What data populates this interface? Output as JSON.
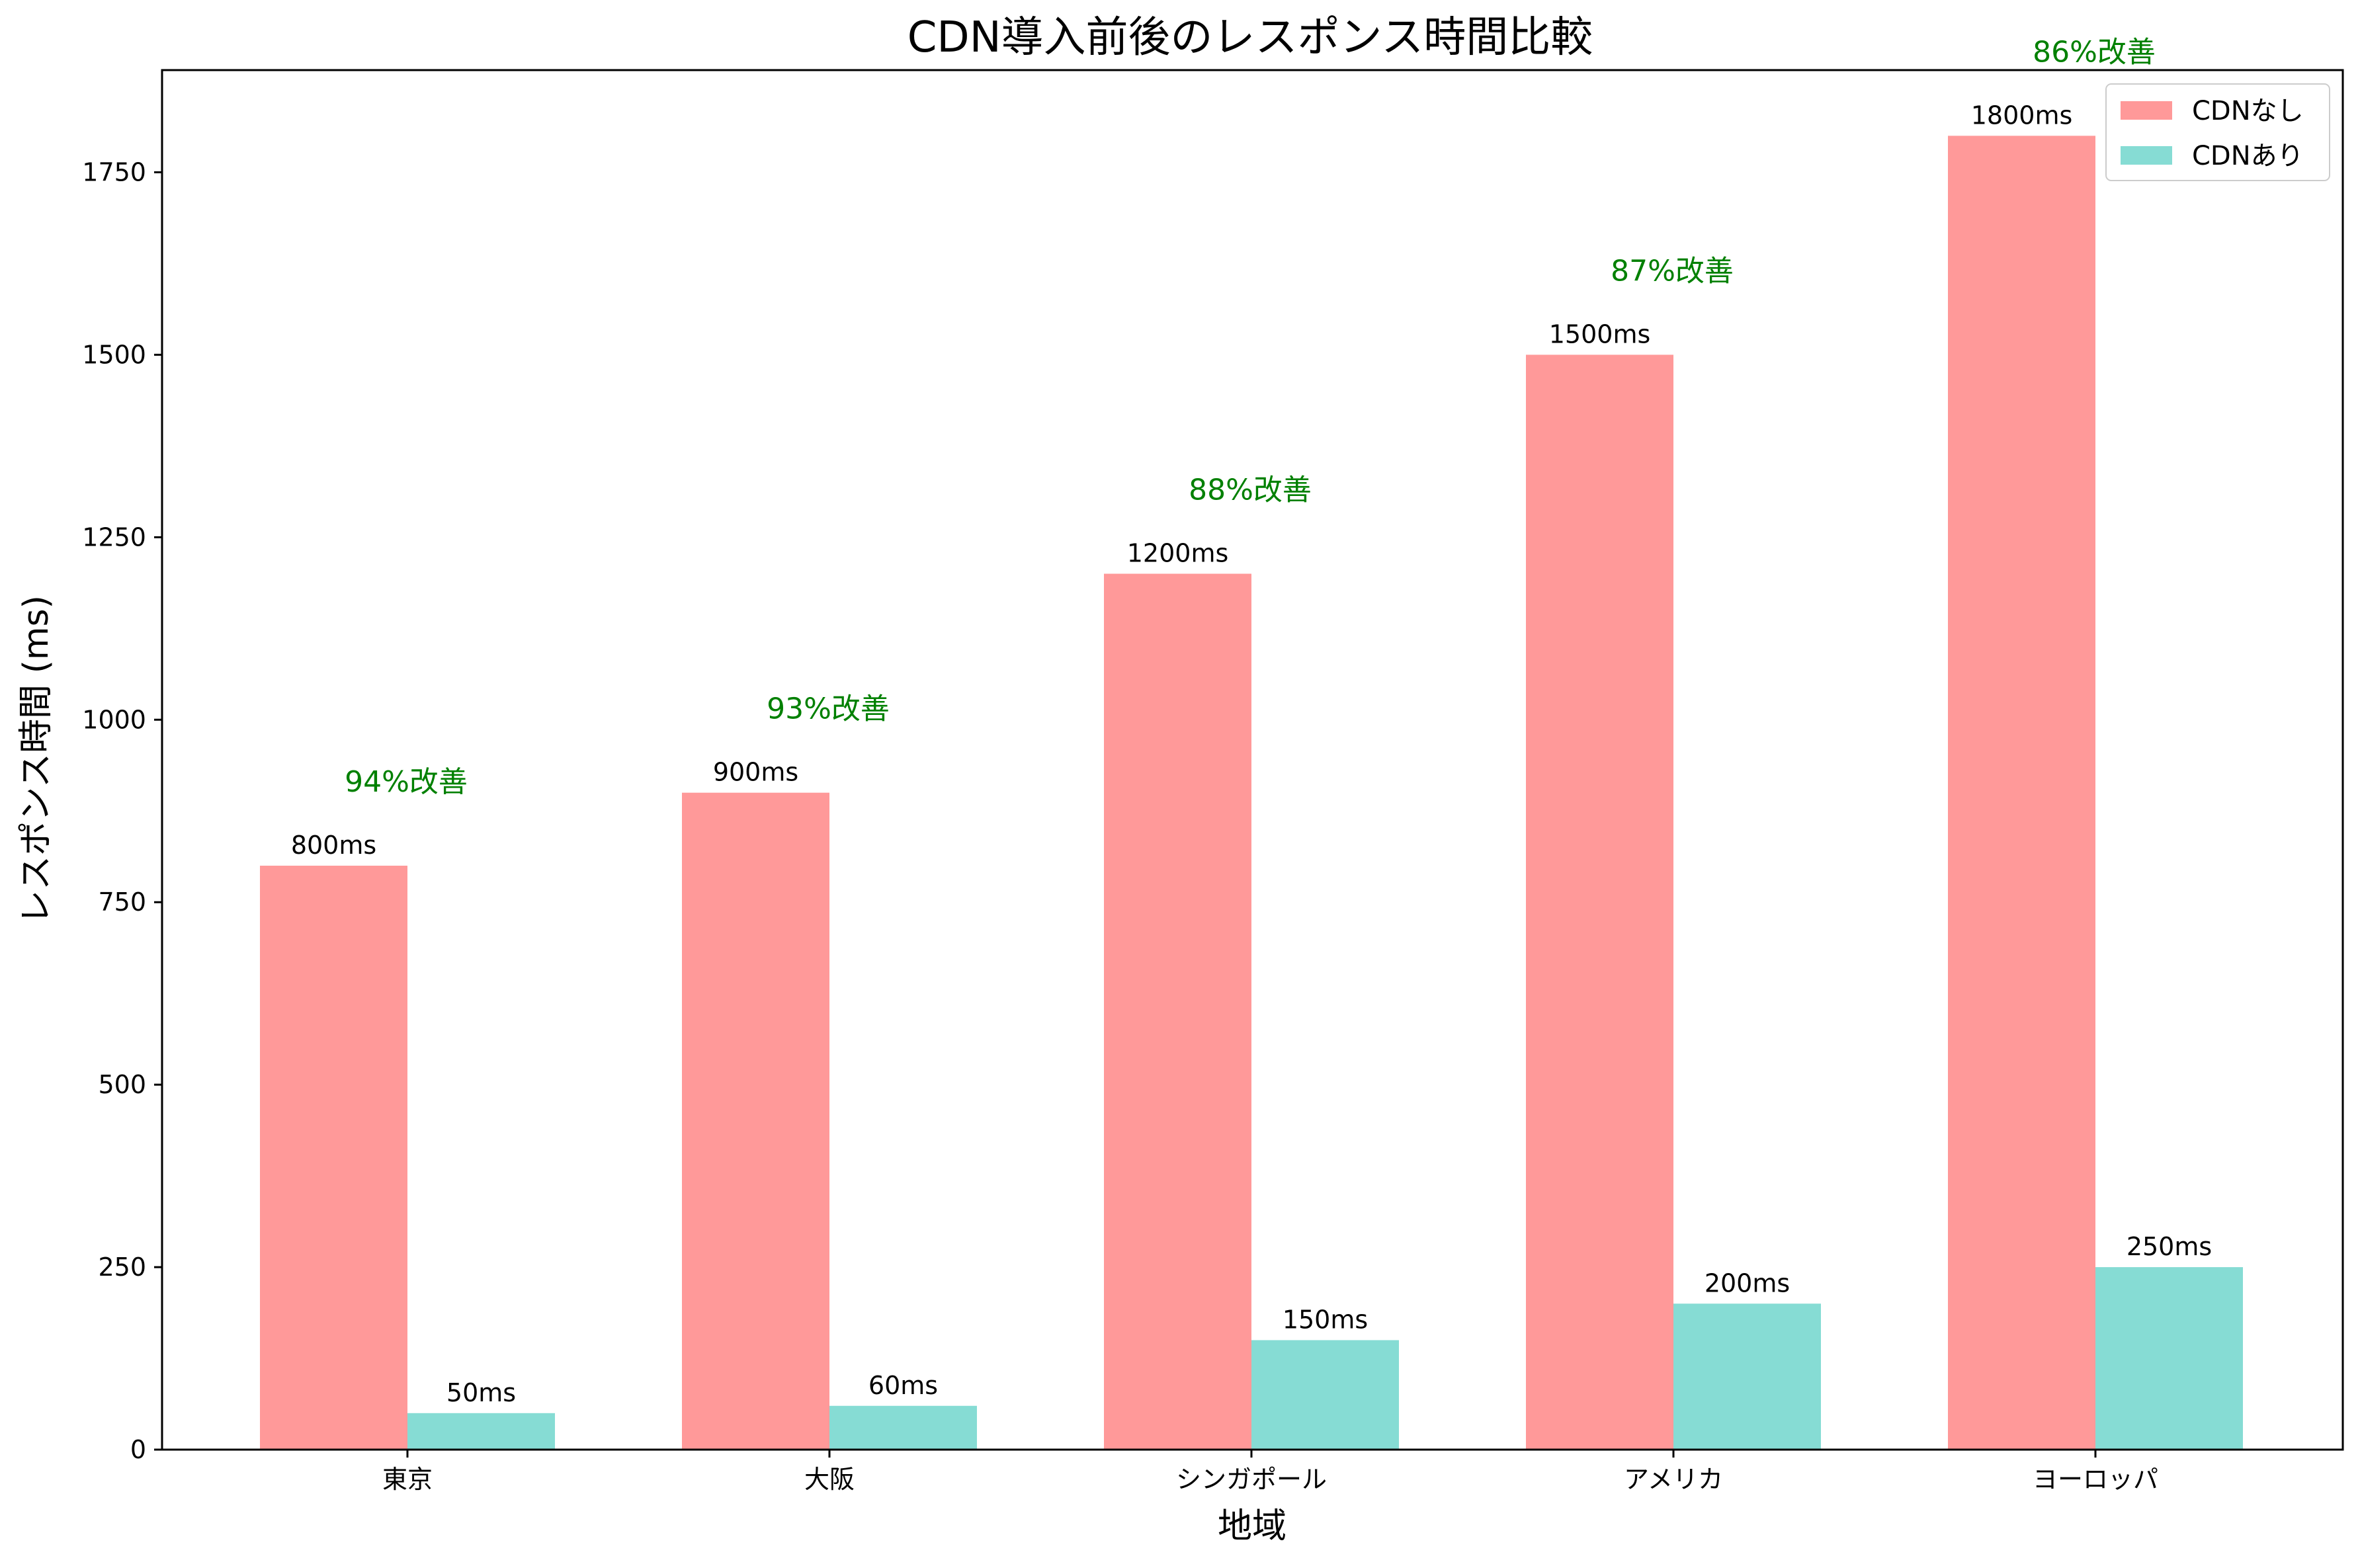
{
  "chart_data": {
    "type": "bar",
    "title": "CDN導入前後のレスポンス時間比較",
    "xlabel": "地域",
    "ylabel": "レスポンス時間 (ms)",
    "categories": [
      "東京",
      "大阪",
      "シンガポール",
      "アメリカ",
      "ヨーロッパ"
    ],
    "series": [
      {
        "name": "CDNなし",
        "color": "#FF9999",
        "values": [
          800,
          900,
          1200,
          1500,
          1800
        ],
        "labels": [
          "800ms",
          "900ms",
          "1200ms",
          "1500ms",
          "1800ms"
        ]
      },
      {
        "name": "CDNあり",
        "color": "#86DCD4",
        "values": [
          50,
          60,
          150,
          200,
          250
        ],
        "labels": [
          "50ms",
          "60ms",
          "150ms",
          "200ms",
          "250ms"
        ]
      }
    ],
    "annotations": [
      "94%改善",
      "93%改善",
      "88%改善",
      "87%改善",
      "86%改善"
    ],
    "annotation_color": "#008000",
    "ylim": [
      0,
      1890
    ],
    "yticks": [
      0,
      250,
      500,
      750,
      1000,
      1250,
      1500,
      1750
    ],
    "grid": false,
    "legend_position": "top-right"
  }
}
